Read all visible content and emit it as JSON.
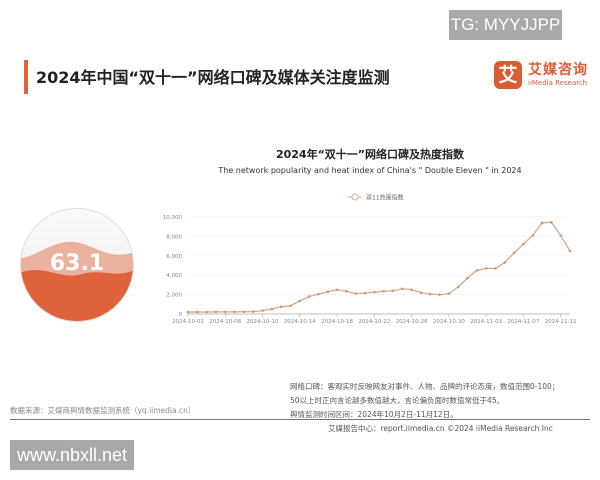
{
  "watermark_top": "TG: MYYJJPP",
  "watermark_bottom": "www.nbxll.net",
  "header": {
    "title": "2024年中国“双十一”网络口碑及媒体关注度监测",
    "logo_mark": "艾",
    "logo_cn": "艾媒咨询",
    "logo_en": "iiMedia Research"
  },
  "gauge": {
    "label": "63.1",
    "value": 63.1,
    "max": 100,
    "color": "#e0623a"
  },
  "chart_data": {
    "type": "line",
    "title": "2024年“双十一”网络口碑及热度指数",
    "subtitle": "The network popularity and heat index of China's \" Double Eleven \" in 2024",
    "legend_position": "top-center",
    "grid": true,
    "ylim": [
      0,
      10000
    ],
    "yticks": [
      "0",
      "2,000",
      "4,000",
      "6,000",
      "8,000",
      "10,000"
    ],
    "xtick_labels": [
      "2024-10-02",
      "2024-10-06",
      "2024-10-10",
      "2024-10-14",
      "2024-10-18",
      "2024-10-22",
      "2024-10-26",
      "2024-10-30",
      "2024-11-03",
      "2024-11-07",
      "2024-11-11"
    ],
    "x": [
      "2024-10-02",
      "2024-10-03",
      "2024-10-04",
      "2024-10-05",
      "2024-10-06",
      "2024-10-07",
      "2024-10-08",
      "2024-10-09",
      "2024-10-10",
      "2024-10-11",
      "2024-10-12",
      "2024-10-13",
      "2024-10-14",
      "2024-10-15",
      "2024-10-16",
      "2024-10-17",
      "2024-10-18",
      "2024-10-19",
      "2024-10-20",
      "2024-10-21",
      "2024-10-22",
      "2024-10-23",
      "2024-10-24",
      "2024-10-25",
      "2024-10-26",
      "2024-10-27",
      "2024-10-28",
      "2024-10-29",
      "2024-10-30",
      "2024-10-31",
      "2024-11-01",
      "2024-11-02",
      "2024-11-03",
      "2024-11-04",
      "2024-11-05",
      "2024-11-06",
      "2024-11-07",
      "2024-11-08",
      "2024-11-09",
      "2024-11-10",
      "2024-11-11",
      "2024-11-12"
    ],
    "series": [
      {
        "name": "双11热度指数",
        "color": "#d9a98a",
        "values": [
          200,
          200,
          200,
          220,
          220,
          220,
          230,
          250,
          350,
          500,
          750,
          850,
          1350,
          1800,
          2050,
          2300,
          2500,
          2350,
          2100,
          2150,
          2250,
          2350,
          2400,
          2600,
          2500,
          2200,
          2050,
          2000,
          2100,
          2800,
          3700,
          4500,
          4700,
          4700,
          5300,
          6300,
          7200,
          8100,
          9400,
          9450,
          8100,
          6500
        ]
      }
    ]
  },
  "footer": {
    "source": "数据来源：艾媒商舆情数据监测系统（yq.iimedia.cn）",
    "note1": "网络口碑：客观实时反映网友对事件、人物、品牌的评论态度，数值范围0-100；",
    "note2": "50以上时正向言论越多数值越大，言论偏负面时数值常低于45。",
    "note3": "舆情监测时间区间：2024年10月2日-11月12日。",
    "credit": "艾媒报告中心：report.iimedia.cn    ©2024  iiMedia Research  Inc"
  }
}
